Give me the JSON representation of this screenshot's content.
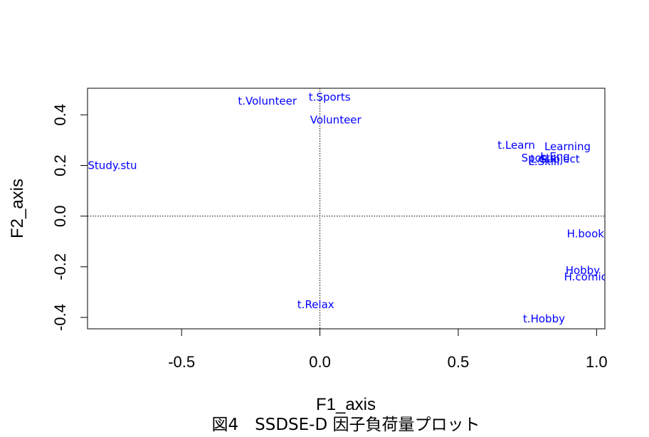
{
  "chart_data": {
    "type": "scatter",
    "title": "図4　SSDSE-D 因子負荷量プロット",
    "xlabel": "F1_axis",
    "ylabel": "F2_axis",
    "xlim": [
      -0.84,
      1.03
    ],
    "ylim": [
      -0.445,
      0.505
    ],
    "xticks": [
      -0.5,
      0.0,
      0.5,
      1.0
    ],
    "xtick_labels": [
      "-0.5",
      "0.0",
      "0.5",
      "1.0"
    ],
    "yticks": [
      -0.4,
      -0.2,
      0.0,
      0.2,
      0.4
    ],
    "ytick_labels": [
      "-0.4",
      "-0.2",
      "0.0",
      "0.2",
      "0.4"
    ],
    "reference_lines": {
      "x": 0,
      "y": 0,
      "style": "dotted"
    },
    "grid": false,
    "label_color": "#0000ff",
    "points": [
      {
        "label": "t.Volunteer",
        "x": -0.19,
        "y": 0.455
      },
      {
        "label": "t.Sports",
        "x": 0.035,
        "y": 0.47
      },
      {
        "label": "Volunteer",
        "x": 0.057,
        "y": 0.38
      },
      {
        "label": "Study.stu",
        "x": -0.75,
        "y": 0.2
      },
      {
        "label": "t.Learn",
        "x": 0.71,
        "y": 0.28
      },
      {
        "label": "Learning",
        "x": 0.895,
        "y": 0.275
      },
      {
        "label": "L.Eng",
        "x": 0.85,
        "y": 0.235
      },
      {
        "label": "Sports",
        "x": 0.79,
        "y": 0.23
      },
      {
        "label": "L.Skill",
        "x": 0.81,
        "y": 0.215
      },
      {
        "label": "L.Subject",
        "x": 0.85,
        "y": 0.225
      },
      {
        "label": "H.book",
        "x": 0.96,
        "y": -0.07
      },
      {
        "label": "Hobby",
        "x": 0.95,
        "y": -0.215
      },
      {
        "label": "H.comic",
        "x": 0.96,
        "y": -0.24
      },
      {
        "label": "t.Relax",
        "x": -0.015,
        "y": -0.35
      },
      {
        "label": "t.Hobby",
        "x": 0.81,
        "y": -0.405
      }
    ]
  }
}
